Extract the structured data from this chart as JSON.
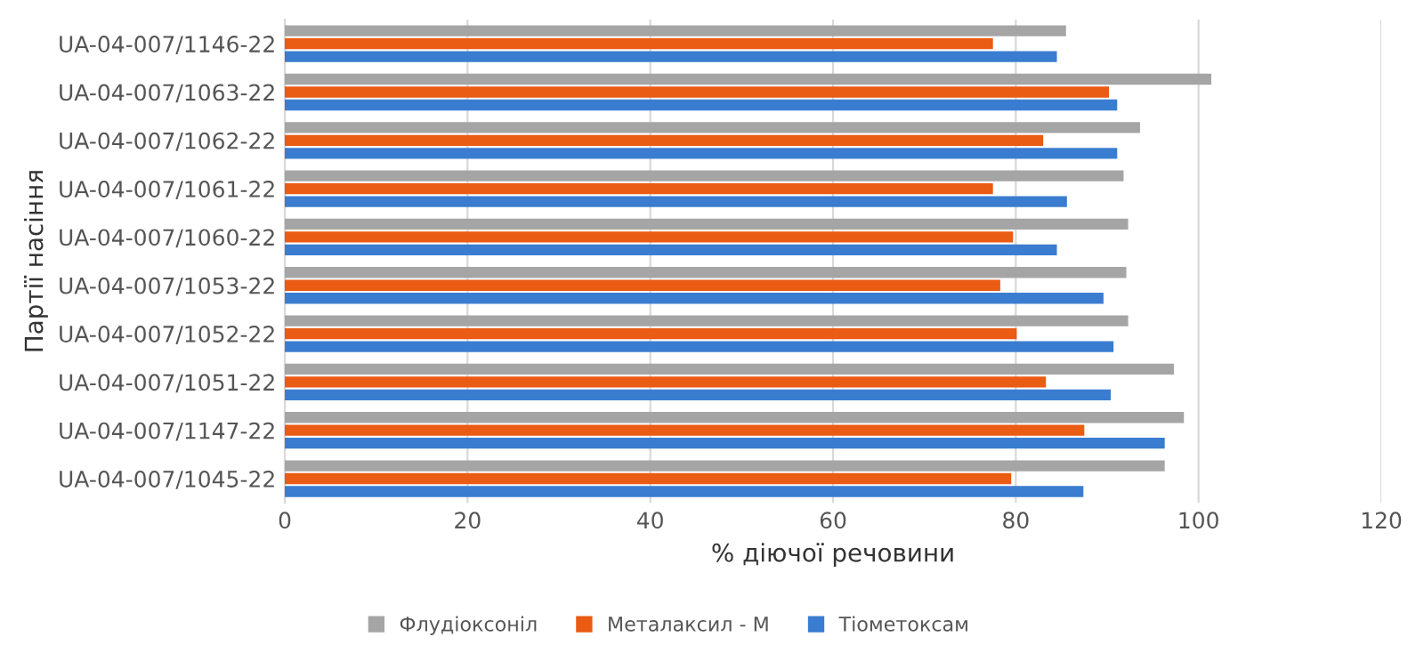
{
  "chart_data": {
    "type": "bar",
    "orientation": "horizontal",
    "xlabel": "% діючої речовини",
    "ylabel": "Партії насіння",
    "categories": [
      "UA-04-007/1146-22",
      "UA-04-007/1063-22",
      "UA-04-007/1062-22",
      "UA-04-007/1061-22",
      "UA-04-007/1060-22",
      "UA-04-007/1053-22",
      "UA-04-007/1052-22",
      "UA-04-007/1051-22",
      "UA-04-007/1147-22",
      "UA-04-007/1045-22"
    ],
    "series": [
      {
        "name": "Флудіоксоніл",
        "color": "#a5a5a5",
        "values": [
          85.5,
          101.4,
          93.6,
          91.8,
          92.3,
          92.1,
          92.3,
          97.3,
          98.4,
          96.3
        ]
      },
      {
        "name": "Металаксил - М",
        "color": "#ea5b14",
        "values": [
          77.5,
          90.2,
          83.0,
          77.5,
          79.7,
          78.3,
          80.1,
          83.3,
          87.5,
          79.5
        ]
      },
      {
        "name": "Тіометоксам",
        "color": "#3a7dd0",
        "values": [
          84.5,
          91.1,
          91.1,
          85.6,
          84.5,
          89.6,
          90.7,
          90.4,
          96.3,
          87.4
        ]
      }
    ],
    "xlim": [
      0,
      120
    ],
    "xticks": [
      0,
      20,
      40,
      60,
      80,
      100,
      120
    ],
    "grid": "x",
    "legend": "bottom"
  }
}
